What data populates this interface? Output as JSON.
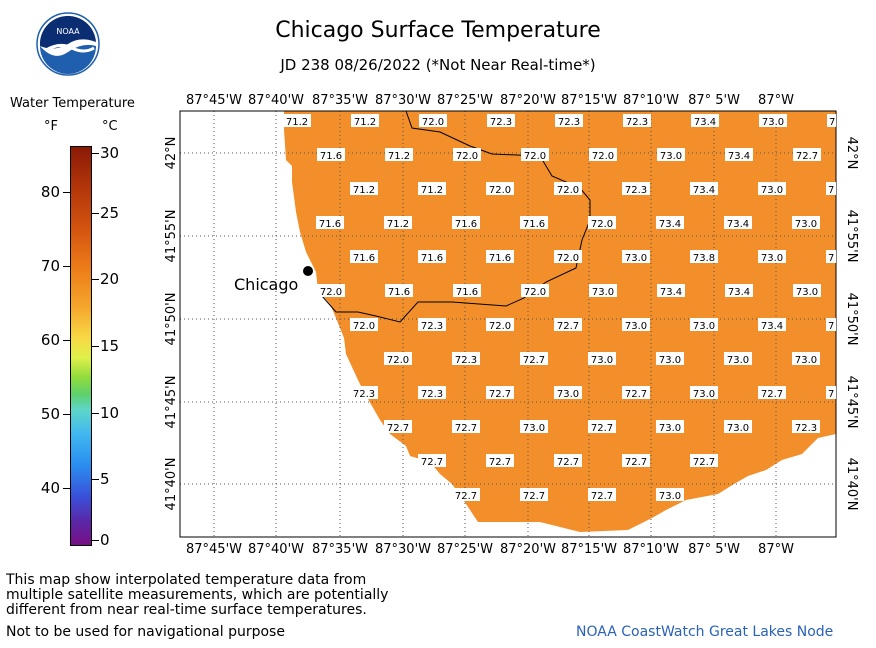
{
  "title": "Chicago Surface Temperature",
  "subtitle": "JD 238 08/26/2022 (*Not Near Real-time*)",
  "logo_text": "NOAA",
  "legend": {
    "title": "Water Temperature",
    "unit_f": "°F",
    "unit_c": "°C",
    "f_ticks": [
      "80",
      "70",
      "60",
      "50",
      "40"
    ],
    "c_ticks": [
      "30",
      "25",
      "20",
      "15",
      "10",
      "5",
      "0"
    ]
  },
  "axes": {
    "lon_labels": [
      "87°45'W",
      "87°40'W",
      "87°35'W",
      "87°30'W",
      "87°25'W",
      "87°20'W",
      "87°15'W",
      "87°10'W",
      "87° 5'W",
      "87°W"
    ],
    "lat_labels": [
      "42°N",
      "41°55'N",
      "41°50'N",
      "41°45'N",
      "41°40'N"
    ]
  },
  "city": "Chicago",
  "temperature_rows": [
    [
      "71.2",
      "71.2",
      "72.0",
      "72.3",
      "72.3",
      "72.3",
      "73.4",
      "73.0",
      "7"
    ],
    [
      "71.6",
      "71.2",
      "72.0",
      "72.0",
      "72.0",
      "73.0",
      "73.4",
      "72.7"
    ],
    [
      "71.2",
      "71.2",
      "72.0",
      "72.0",
      "72.3",
      "73.4",
      "73.0",
      "7"
    ],
    [
      "71.6",
      "71.2",
      "71.6",
      "71.6",
      "72.0",
      "73.4",
      "73.4",
      "73.0"
    ],
    [
      "71.6",
      "71.6",
      "71.6",
      "72.0",
      "73.0",
      "73.8",
      "73.0",
      "7"
    ],
    [
      "72.0",
      "71.6",
      "71.6",
      "72.0",
      "73.0",
      "73.4",
      "73.4",
      "73.0"
    ],
    [
      "72.0",
      "72.3",
      "72.0",
      "72.7",
      "73.0",
      "73.0",
      "73.4",
      "7"
    ],
    [
      "72.0",
      "72.3",
      "72.7",
      "73.0",
      "73.0",
      "73.0",
      "73.0"
    ],
    [
      "72.3",
      "72.3",
      "72.7",
      "73.0",
      "72.7",
      "73.0",
      "72.7",
      "7"
    ],
    [
      "72.7",
      "72.7",
      "73.0",
      "72.7",
      "73.0",
      "73.0",
      "72.3"
    ],
    [
      "72.7",
      "72.7",
      "72.7",
      "72.7",
      "72.7"
    ],
    [
      "72.7",
      "72.7",
      "72.7",
      "73.0"
    ]
  ],
  "colors": {
    "water": "#f28f2b",
    "credit": "#2b62b8"
  },
  "footer": {
    "note": "This map show interpolated temperature data from\nmultiple satellite measurements, which are potentially\ndifferent from near real-time surface temperatures.",
    "nav_warning": "Not to be used for navigational purpose",
    "credit": "NOAA CoastWatch Great Lakes Node"
  }
}
